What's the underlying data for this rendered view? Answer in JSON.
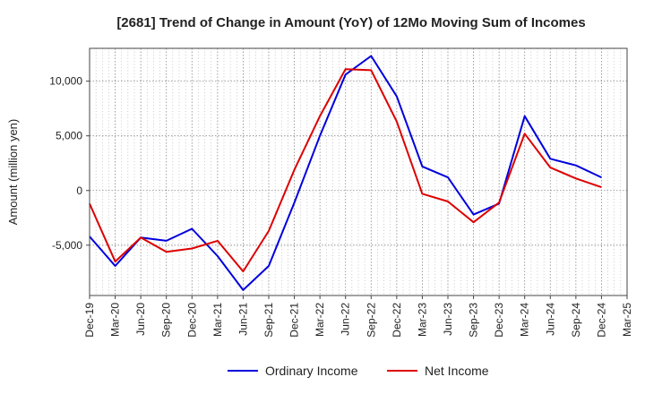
{
  "chart_data": {
    "type": "line",
    "title": "[2681]  Trend of Change in Amount (YoY) of 12Mo Moving Sum of Incomes",
    "ylabel": "Amount (million yen)",
    "xlabel": "",
    "x": [
      "Dec-19",
      "Mar-20",
      "Jun-20",
      "Sep-20",
      "Dec-20",
      "Mar-21",
      "Jun-21",
      "Sep-21",
      "Dec-21",
      "Mar-22",
      "Jun-22",
      "Sep-22",
      "Dec-22",
      "Mar-23",
      "Jun-23",
      "Sep-23",
      "Dec-23",
      "Mar-24",
      "Jun-24",
      "Sep-24",
      "Dec-24",
      "Mar-25"
    ],
    "ylim": [
      -9600,
      13000
    ],
    "yticks": [
      -5000,
      0,
      5000,
      10000
    ],
    "ytick_labels": [
      "-5,000",
      "0",
      "5,000",
      "10,000"
    ],
    "grid": true,
    "legend_position": "bottom",
    "series": [
      {
        "name": "Ordinary Income",
        "color": "#0000dd",
        "values": [
          -4200,
          -6900,
          -4300,
          -4600,
          -3500,
          -6000,
          -9100,
          -6900,
          -1100,
          5000,
          10600,
          12300,
          8600,
          2200,
          1200,
          -2200,
          -1200,
          6800,
          2900,
          2300,
          1200,
          null
        ]
      },
      {
        "name": "Net Income",
        "color": "#dd0000",
        "values": [
          -1200,
          -6500,
          -4300,
          -5600,
          -5300,
          -4600,
          -7400,
          -3700,
          1900,
          6800,
          11100,
          11000,
          6300,
          -300,
          -1000,
          -2900,
          -1100,
          5200,
          2100,
          1100,
          300,
          null
        ]
      }
    ]
  }
}
